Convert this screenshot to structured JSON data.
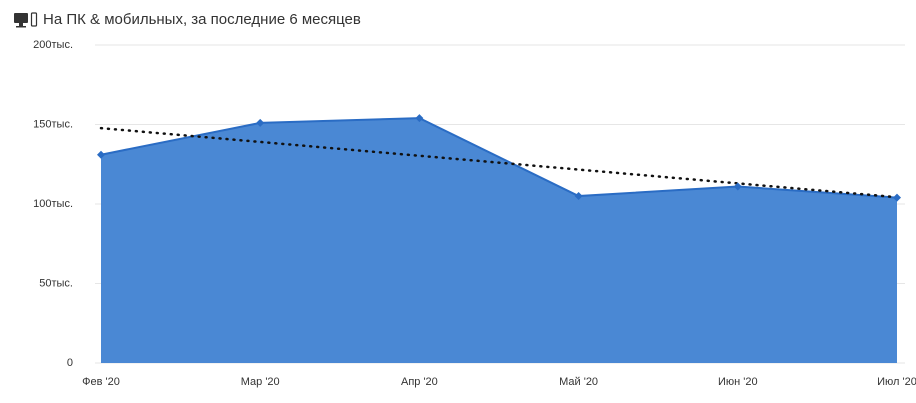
{
  "chart_data": {
    "type": "area",
    "title": "На ПК & мобильных, за последние 6 месяцев",
    "categories": [
      "Фев '20",
      "Мар '20",
      "Апр '20",
      "Май '20",
      "Июн '20",
      "Июл '20"
    ],
    "series": [
      {
        "color": "#2a6cc4",
        "values": [
          131000,
          151000,
          154000,
          105000,
          111000,
          104000
        ]
      }
    ],
    "ylim": [
      0,
      200000
    ],
    "yticks": [
      0,
      {
        "value": 50000,
        "label": "50тыс."
      },
      {
        "value": 100000,
        "label": "100тыс."
      },
      {
        "value": 150000,
        "label": "150тыс."
      },
      {
        "value": 200000,
        "label": "200тыс."
      }
    ],
    "grid": true,
    "trendline": "linear"
  }
}
